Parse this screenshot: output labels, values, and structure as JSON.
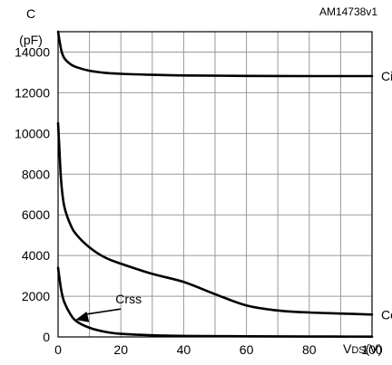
{
  "chart_data": {
    "type": "line",
    "figure_id": "AM14738v1",
    "ylabel_line1": "C",
    "ylabel_line2": "(pF)",
    "xlabel_main": "V",
    "xlabel_sub": "DS",
    "xlabel_unit": "(V)",
    "xlim": [
      0,
      100
    ],
    "ylim": [
      0,
      15000
    ],
    "x_ticks": [
      0,
      20,
      40,
      60,
      80,
      100
    ],
    "y_ticks": [
      0,
      2000,
      4000,
      6000,
      8000,
      10000,
      12000,
      14000
    ],
    "x_tick_labels": [
      "0",
      "20",
      "40",
      "60",
      "80",
      "100"
    ],
    "y_tick_labels": [
      "0",
      "2000",
      "4000",
      "6000",
      "8000",
      "10000",
      "12000",
      "14000"
    ],
    "x_grid_step": 10,
    "grid": true,
    "colors": {
      "line": "#000000",
      "grid": "#999999"
    },
    "series": [
      {
        "name": "Ciss",
        "x": [
          0,
          1,
          2,
          4,
          6,
          10,
          15,
          20,
          30,
          40,
          60,
          80,
          100
        ],
        "y": [
          15000,
          14100,
          13700,
          13400,
          13250,
          13080,
          12980,
          12930,
          12880,
          12850,
          12830,
          12820,
          12820
        ]
      },
      {
        "name": "Coss",
        "x": [
          0,
          0.5,
          1,
          2,
          4,
          6,
          10,
          15,
          20,
          30,
          40,
          50,
          60,
          70,
          80,
          90,
          100
        ],
        "y": [
          10500,
          9000,
          7600,
          6400,
          5500,
          5000,
          4400,
          3900,
          3600,
          3100,
          2700,
          2100,
          1550,
          1300,
          1200,
          1150,
          1100
        ]
      },
      {
        "name": "Crss",
        "x": [
          0,
          1,
          2,
          4,
          6,
          10,
          15,
          20,
          30,
          40,
          60,
          80,
          100
        ],
        "y": [
          3400,
          2300,
          1700,
          1100,
          750,
          450,
          250,
          150,
          80,
          50,
          30,
          20,
          15
        ]
      }
    ],
    "annotations": [
      {
        "text": "Ciss",
        "series": "Ciss",
        "x": 100,
        "y": 12820,
        "placement": "right"
      },
      {
        "text": "Coss",
        "series": "Coss",
        "x": 100,
        "y": 1100,
        "placement": "right"
      },
      {
        "text": "Crss",
        "series": "Crss",
        "x": 5,
        "y": 750,
        "placement": "arrow-upper-right"
      }
    ]
  }
}
